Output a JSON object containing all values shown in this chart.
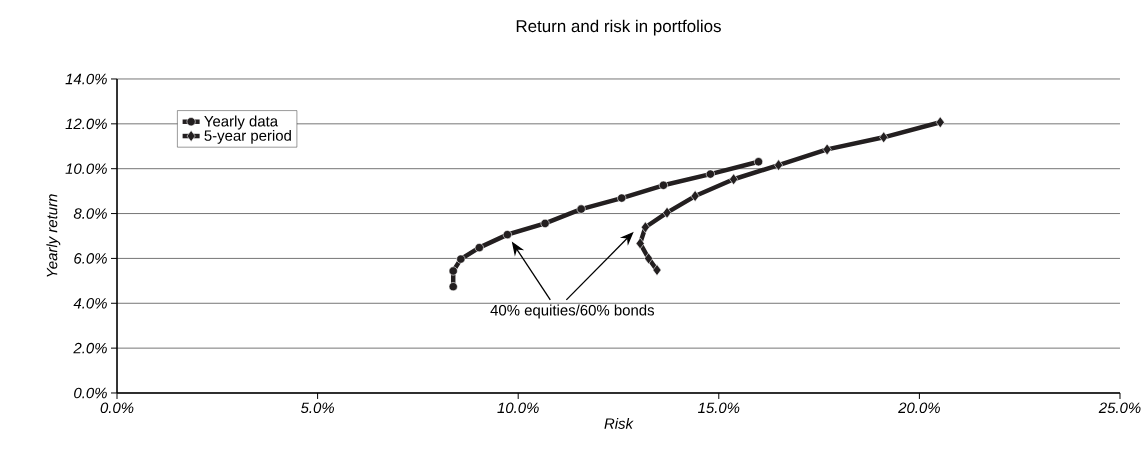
{
  "chart_data": {
    "type": "line",
    "title": "Return and risk in portfolios",
    "xlabel": "Risk",
    "ylabel": "Yearly return",
    "xlim": [
      0,
      25
    ],
    "ylim": [
      0,
      14
    ],
    "xticks": [
      {
        "value": 0,
        "label": "0.0%"
      },
      {
        "value": 5,
        "label": "5.0%"
      },
      {
        "value": 10,
        "label": "10.0%"
      },
      {
        "value": 15,
        "label": "15.0%"
      },
      {
        "value": 20,
        "label": "20.0%"
      },
      {
        "value": 25,
        "label": "25.0%"
      }
    ],
    "yticks": [
      {
        "value": 0,
        "label": "0.0%"
      },
      {
        "value": 2,
        "label": "2.0%"
      },
      {
        "value": 4,
        "label": "4.0%"
      },
      {
        "value": 6,
        "label": "6.0%"
      },
      {
        "value": 8,
        "label": "8.0%"
      },
      {
        "value": 10,
        "label": "10.0%"
      },
      {
        "value": 12,
        "label": "12.0%"
      },
      {
        "value": 14,
        "label": "14.0%"
      }
    ],
    "grid": "y",
    "legend": "top left",
    "line_style": "solid",
    "series": [
      {
        "name": "Yearly data",
        "color": "#231f20",
        "marker": "circle",
        "x": [
          8.38,
          8.38,
          8.57,
          9.03,
          9.73,
          10.67,
          11.57,
          12.58,
          13.62,
          14.79,
          15.99
        ],
        "values": [
          4.74,
          5.44,
          5.97,
          6.48,
          7.06,
          7.56,
          8.2,
          8.69,
          9.26,
          9.76,
          10.31
        ]
      },
      {
        "name": "5-year period",
        "color": "#231f20",
        "marker": "diamond",
        "x": [
          13.46,
          13.25,
          13.04,
          13.17,
          13.71,
          14.41,
          15.37,
          16.49,
          17.7,
          19.11,
          20.52
        ],
        "values": [
          5.48,
          6.0,
          6.67,
          7.39,
          8.04,
          8.78,
          9.53,
          10.16,
          10.86,
          11.4,
          12.07
        ]
      }
    ],
    "annotations": [
      "40% equities/60% bonds"
    ]
  }
}
